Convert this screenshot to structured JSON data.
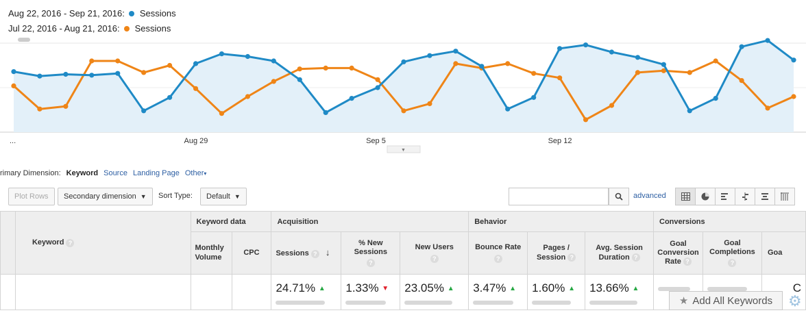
{
  "legend": {
    "current": {
      "range": "Aug 22, 2016 - Sep 21, 2016:",
      "series": "Sessions",
      "color": "#1f8ac6"
    },
    "previous": {
      "range": "Jul 22, 2016 - Aug 21, 2016:",
      "series": "Sessions",
      "color": "#ef8517"
    }
  },
  "chart_data": {
    "type": "line",
    "title": "",
    "x": [
      "Aug 22",
      "Aug 23",
      "Aug 24",
      "Aug 25",
      "Aug 26",
      "Aug 27",
      "Aug 28",
      "Aug 29",
      "Aug 30",
      "Aug 31",
      "Sep 1",
      "Sep 2",
      "Sep 3",
      "Sep 4",
      "Sep 5",
      "Sep 6",
      "Sep 7",
      "Sep 8",
      "Sep 9",
      "Sep 10",
      "Sep 11",
      "Sep 12",
      "Sep 13",
      "Sep 14",
      "Sep 15",
      "Sep 16",
      "Sep 17",
      "Sep 18",
      "Sep 19",
      "Sep 20",
      "Sep 21"
    ],
    "x_tick_labels": [
      "...",
      "Aug 29",
      "Sep 5",
      "Sep 12"
    ],
    "y_axis_top_label": "blurred",
    "ylim": [
      0,
      100
    ],
    "grid": true,
    "series": [
      {
        "name": "Sessions",
        "period": "Aug 22, 2016 - Sep 21, 2016",
        "color": "#1f8ac6",
        "area": true,
        "values": [
          68,
          63,
          65,
          64,
          66,
          24,
          39,
          77,
          88,
          85,
          80,
          59,
          22,
          38,
          50,
          79,
          86,
          91,
          74,
          26,
          39,
          94,
          98,
          90,
          84,
          76,
          24,
          38,
          96,
          103,
          81
        ]
      },
      {
        "name": "Sessions",
        "period": "Jul 22, 2016 - Aug 21, 2016",
        "color": "#ef8517",
        "area": false,
        "values": [
          52,
          26,
          29,
          80,
          80,
          67,
          75,
          49,
          21,
          40,
          57,
          71,
          72,
          72,
          59,
          24,
          32,
          77,
          72,
          77,
          66,
          61,
          14,
          30,
          67,
          69,
          67,
          80,
          58,
          27,
          40
        ]
      }
    ]
  },
  "dimension_bar": {
    "prefix": "rimary Dimension:",
    "active": "Keyword",
    "links": [
      "Source",
      "Landing Page",
      "Other"
    ]
  },
  "toolbar": {
    "plot_rows": "Plot Rows",
    "secondary_dimension": "Secondary dimension",
    "sort_type_label": "Sort Type:",
    "sort_type_value": "Default",
    "search_placeholder": "",
    "advanced": "advanced"
  },
  "table": {
    "keyword_header": "Keyword",
    "groups": {
      "keyword_data": "Keyword data",
      "acquisition": "Acquisition",
      "behavior": "Behavior",
      "conversions": "Conversions"
    },
    "columns": {
      "monthly_volume": "Monthly Volume",
      "cpc": "CPC",
      "sessions": "Sessions",
      "new_sessions": "% New Sessions",
      "new_users": "New Users",
      "bounce_rate": "Bounce Rate",
      "pages_session": "Pages / Session",
      "avg_session_duration": "Avg. Session Duration",
      "goal_conversion_rate": "Goal Conversion Rate",
      "goal_completions": "Goal Completions",
      "goal_value": "Goa"
    },
    "summary": {
      "sessions": {
        "value": "24.71%",
        "trend": "up"
      },
      "new_sessions": {
        "value": "1.33%",
        "trend": "down"
      },
      "new_users": {
        "value": "23.05%",
        "trend": "up"
      },
      "bounce_rate": {
        "value": "3.47%",
        "trend": "up"
      },
      "pages_session": {
        "value": "1.60%",
        "trend": "up"
      },
      "avg_session_duration": {
        "value": "13.66%",
        "trend": "up"
      },
      "goal_value": "C"
    }
  },
  "add_keywords": "Add All Keywords",
  "colors": {
    "up": "#27a844",
    "down": "#e0202b",
    "link": "#2d5fa3"
  }
}
